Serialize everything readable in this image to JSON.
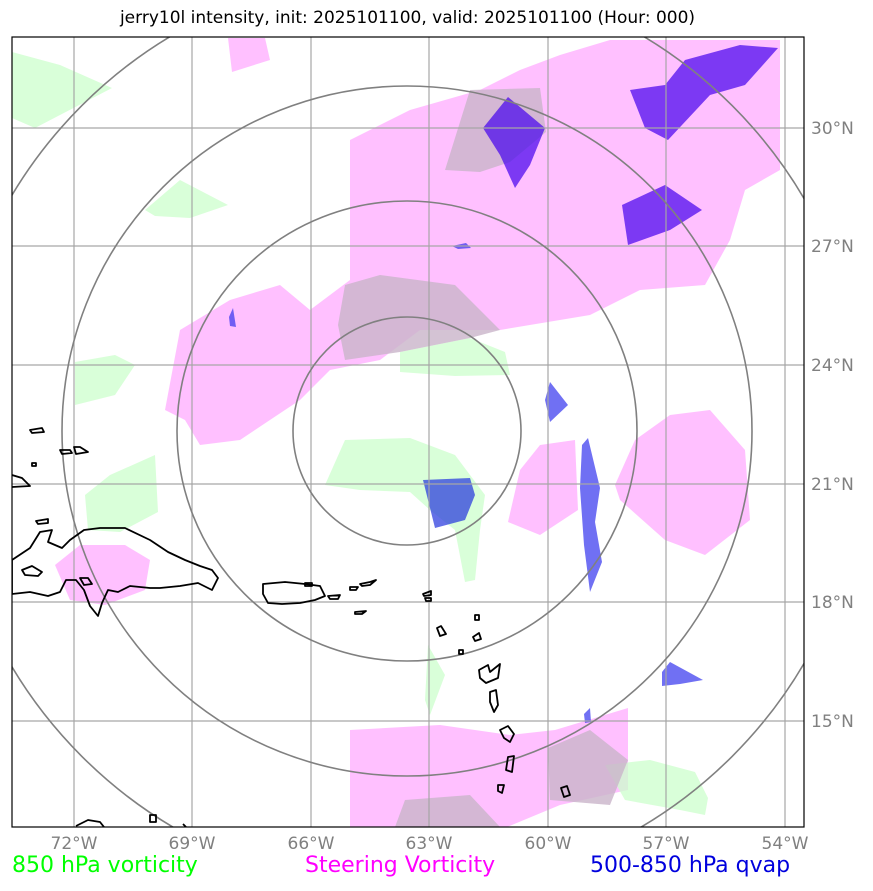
{
  "title": "jerry10l intensity, init: 2025101100, valid: 2025101100 (Hour: 000)",
  "colors": {
    "vort850": "#ccffcc",
    "steering": "#ff99ff",
    "qvap": "#2222ee",
    "overlap": "#d9bfd9",
    "grid": "#808080",
    "coast": "#000000"
  },
  "x_ticks": [
    "72°W",
    "69°W",
    "66°W",
    "63°W",
    "60°W",
    "57°W",
    "54°W"
  ],
  "y_ticks": [
    "30°N",
    "27°N",
    "24°N",
    "21°N",
    "18°N",
    "15°N"
  ],
  "legend": [
    {
      "label": "850 hPa vorticity",
      "color": "#00ff00"
    },
    {
      "label": "Steering Vorticity",
      "color": "#ff00ff"
    },
    {
      "label": "500-850 hPa qvap",
      "color": "#0000dd"
    }
  ]
}
